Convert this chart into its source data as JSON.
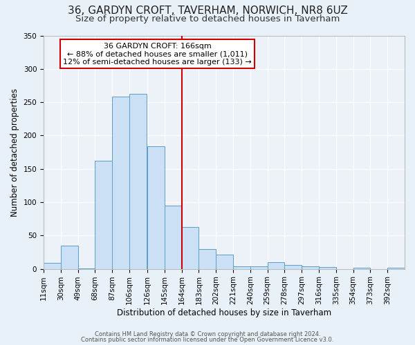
{
  "title": "36, GARDYN CROFT, TAVERHAM, NORWICH, NR8 6UZ",
  "subtitle": "Size of property relative to detached houses in Taverham",
  "xlabel": "Distribution of detached houses by size in Taverham",
  "ylabel": "Number of detached properties",
  "bin_labels": [
    "11sqm",
    "30sqm",
    "49sqm",
    "68sqm",
    "87sqm",
    "106sqm",
    "126sqm",
    "145sqm",
    "164sqm",
    "183sqm",
    "202sqm",
    "221sqm",
    "240sqm",
    "259sqm",
    "278sqm",
    "297sqm",
    "316sqm",
    "335sqm",
    "354sqm",
    "373sqm",
    "392sqm"
  ],
  "bar_lefts": [
    11,
    30,
    49,
    68,
    87,
    106,
    126,
    145,
    164,
    183,
    202,
    221,
    240,
    259,
    278,
    297,
    316,
    335,
    354,
    373,
    392
  ],
  "bin_width": 19,
  "bar_heights": [
    9,
    35,
    1,
    162,
    258,
    263,
    184,
    95,
    63,
    30,
    21,
    4,
    4,
    10,
    6,
    4,
    3,
    0,
    2,
    0,
    2
  ],
  "bar_color": "#cce0f5",
  "bar_edge_color": "#5b9ec9",
  "vline_x": 164,
  "vline_color": "#cc0000",
  "annotation_title": "36 GARDYN CROFT: 166sqm",
  "annotation_line1": "← 88% of detached houses are smaller (1,011)",
  "annotation_line2": "12% of semi-detached houses are larger (133) →",
  "annotation_box_color": "#cc0000",
  "ylim": [
    0,
    350
  ],
  "yticks": [
    0,
    50,
    100,
    150,
    200,
    250,
    300,
    350
  ],
  "footer1": "Contains HM Land Registry data © Crown copyright and database right 2024.",
  "footer2": "Contains public sector information licensed under the Open Government Licence v3.0.",
  "bg_color": "#e8f0f8",
  "plot_bg_color": "#edf2f9",
  "title_fontsize": 11,
  "subtitle_fontsize": 9.5,
  "xlabel_fontsize": 8.5,
  "ylabel_fontsize": 8.5,
  "tick_fontsize": 7.5,
  "annotation_fontsize": 8,
  "footer_fontsize": 6
}
